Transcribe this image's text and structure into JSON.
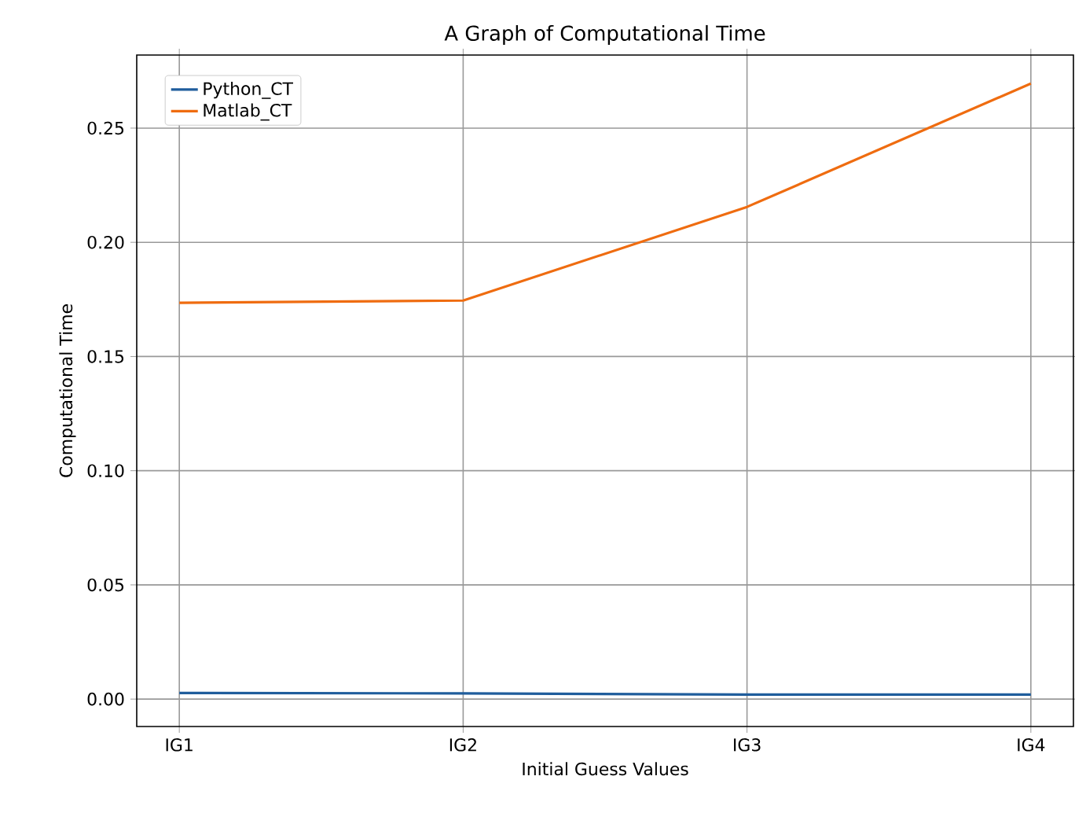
{
  "chart_data": {
    "type": "line",
    "title": "A Graph of Computational Time",
    "xlabel": "Initial Guess Values",
    "ylabel": "Computational Time",
    "categories": [
      "IG1",
      "IG2",
      "IG3",
      "IG4"
    ],
    "series": [
      {
        "name": "Python_CT",
        "color": "#1f5d9c",
        "values": [
          0.0027,
          0.0025,
          0.002,
          0.002
        ]
      },
      {
        "name": "Matlab_CT",
        "color": "#ef6c10",
        "values": [
          0.1735,
          0.1745,
          0.2155,
          0.2695
        ]
      }
    ],
    "ylim": [
      -0.012,
      0.282
    ],
    "yticks": [
      {
        "value": 0,
        "label": "0.00"
      },
      {
        "value": 0.05,
        "label": "0.05"
      },
      {
        "value": 0.1,
        "label": "0.10"
      },
      {
        "value": 0.15,
        "label": "0.15"
      },
      {
        "value": 0.2,
        "label": "0.20"
      },
      {
        "value": 0.25,
        "label": "0.25"
      }
    ],
    "grid": true,
    "legend": "top left",
    "marker": "none",
    "line_style": "solid"
  }
}
